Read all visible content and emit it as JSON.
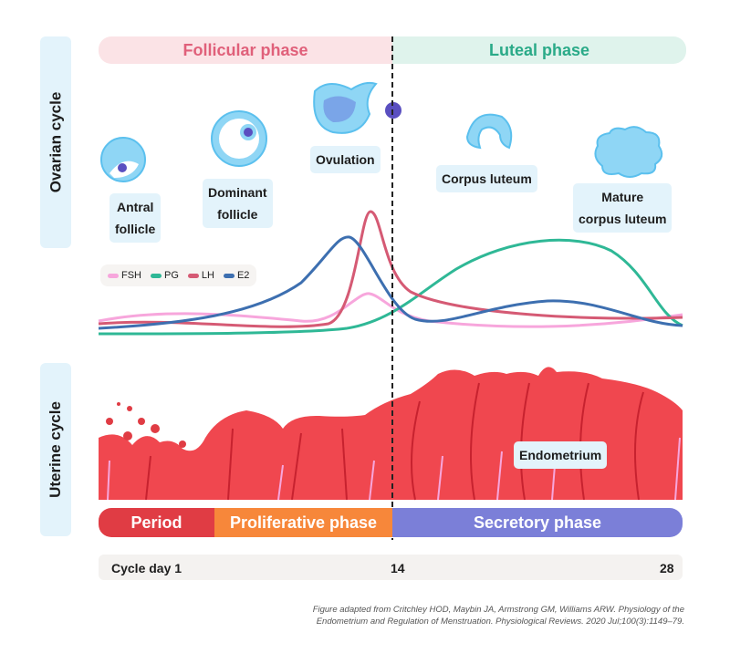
{
  "side_labels": {
    "ovarian": "Ovarian cycle",
    "uterine": "Uterine cycle"
  },
  "phases": {
    "follicular": "Follicular phase",
    "luteal": "Luteal phase"
  },
  "ovary_stages": [
    "Antral follicle",
    "Dominant follicle",
    "Ovulation",
    "Corpus luteum",
    "Mature corpus luteum"
  ],
  "ovary_stage_lines": {
    "antral": [
      "Antral",
      "follicle"
    ],
    "dominant": [
      "Dominant",
      "follicle"
    ],
    "mature": [
      "Mature",
      "corpus luteum"
    ]
  },
  "legend": [
    {
      "name": "FSH",
      "color": "#f7a6dc"
    },
    {
      "name": "PG",
      "color": "#2fb896"
    },
    {
      "name": "LH",
      "color": "#d55a74"
    },
    {
      "name": "E2",
      "color": "#3d6fb0"
    }
  ],
  "endometrium_label": "Endometrium",
  "menstrual_phases": [
    {
      "label": "Period",
      "color": "#e03c44"
    },
    {
      "label": "Proliferative phase",
      "color": "#f7873a"
    },
    {
      "label": "Secretory phase",
      "color": "#7b7fd8"
    }
  ],
  "cycle_days": {
    "start": "Cycle day 1",
    "mid": "14",
    "end": "28"
  },
  "caption": [
    "Figure adapted from Critchley HOD, Maybin JA, Armstrong GM, Williams ARW. Physiology of the",
    "Endometrium and Regulation of Menstruation. Physiological Reviews. 2020 Jul;100(3):1149–79."
  ],
  "colors": {
    "follicular_bg": "#fbe3e6",
    "follicular_text": "#e0607a",
    "luteal_bg": "#dff3ec",
    "luteal_text": "#2aaa88",
    "endometrium": "#f0474f",
    "cell": "#8fd6f5",
    "egg": "#5a4fc0"
  }
}
